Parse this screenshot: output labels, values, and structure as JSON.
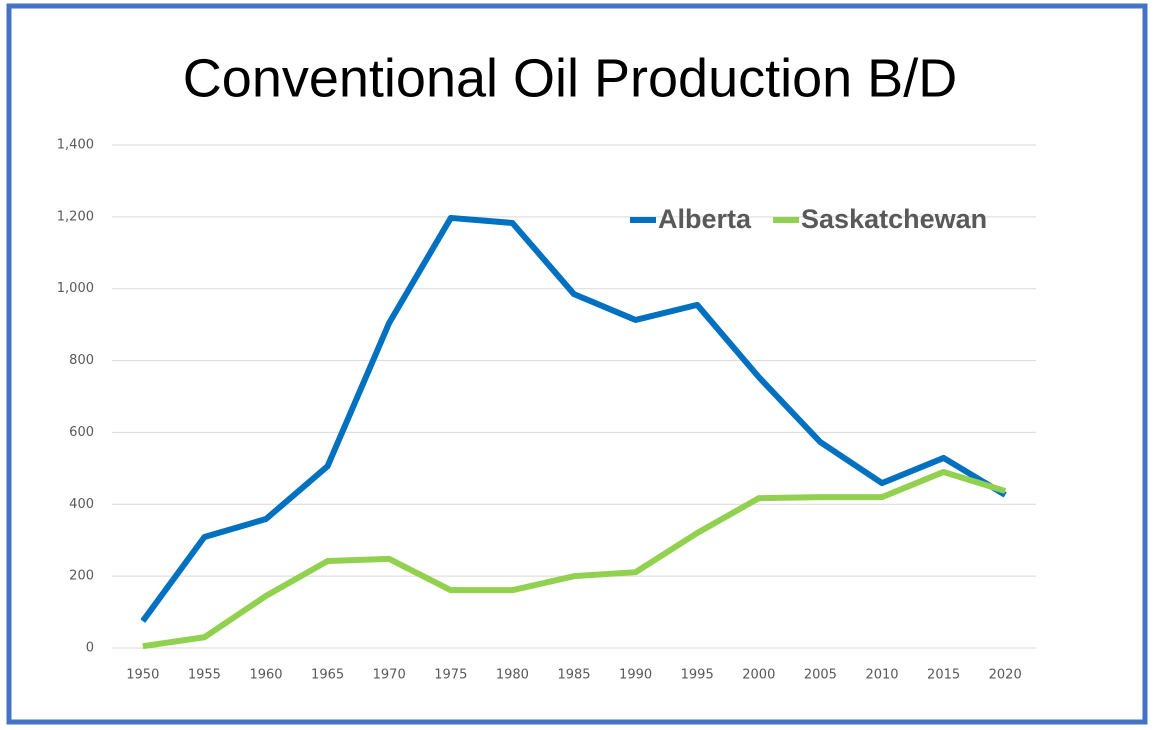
{
  "chart_data": {
    "type": "line",
    "title": "Conventional Oil Production B/D",
    "categories": [
      "1950",
      "1955",
      "1960",
      "1965",
      "1970",
      "1975",
      "1980",
      "1985",
      "1990",
      "1995",
      "2000",
      "2005",
      "2010",
      "2015",
      "2020"
    ],
    "series": [
      {
        "name": "Alberta",
        "color": "#0070c0",
        "values": [
          75,
          309,
          359,
          506,
          905,
          1197,
          1183,
          985,
          913,
          955,
          754,
          573,
          459,
          529,
          426
        ]
      },
      {
        "name": "Saskatchewan",
        "color": "#92d050",
        "values": [
          5,
          30,
          145,
          242,
          248,
          161,
          161,
          200,
          211,
          320,
          417,
          420,
          420,
          490,
          437
        ]
      }
    ],
    "ylim": [
      0,
      1400
    ],
    "yticks": [
      0,
      200,
      400,
      600,
      800,
      {
        "value": 1000,
        "label": "1,000"
      },
      {
        "value": 1200,
        "label": "1,200"
      },
      {
        "value": 1400,
        "label": "1,400"
      }
    ],
    "grid": true,
    "legend": "top-right"
  }
}
